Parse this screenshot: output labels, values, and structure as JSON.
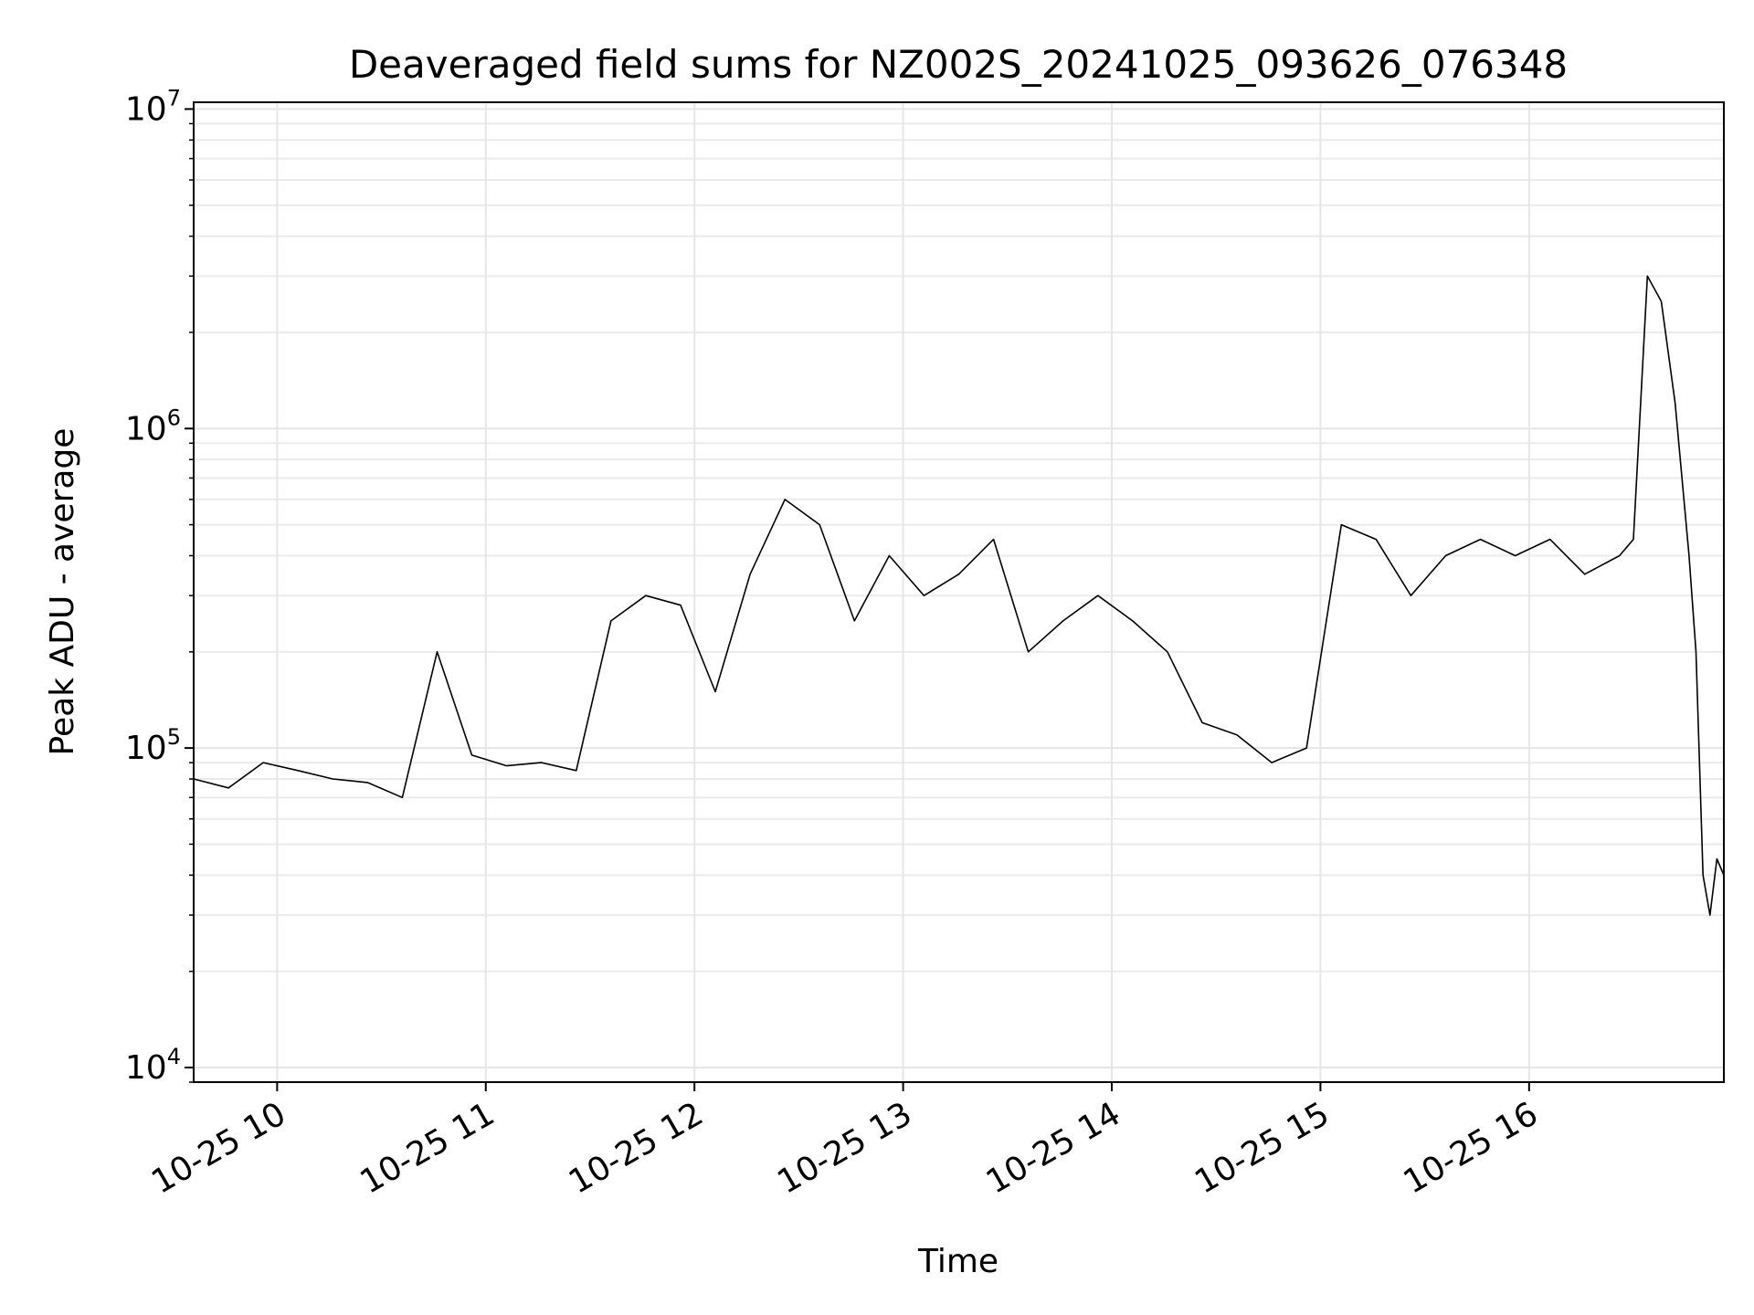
{
  "chart_data": {
    "type": "line",
    "title": "Deaveraged field sums for NZ002S_20241025_093626_076348",
    "xlabel": "Time",
    "ylabel": "Peak ADU - average",
    "yscale": "log",
    "ylim": [
      9000,
      10500000
    ],
    "xlim": [
      "2024-10-25 09:36",
      "2024-10-25 16:56"
    ],
    "x_ticks": [
      {
        "label": "10-25 10",
        "time": "2024-10-25 10:00"
      },
      {
        "label": "10-25 11",
        "time": "2024-10-25 11:00"
      },
      {
        "label": "10-25 12",
        "time": "2024-10-25 12:00"
      },
      {
        "label": "10-25 13",
        "time": "2024-10-25 13:00"
      },
      {
        "label": "10-25 14",
        "time": "2024-10-25 14:00"
      },
      {
        "label": "10-25 15",
        "time": "2024-10-25 15:00"
      },
      {
        "label": "10-25 16",
        "time": "2024-10-25 16:00"
      }
    ],
    "y_ticks": [
      {
        "base": "10",
        "exp": "4",
        "value": 10000
      },
      {
        "base": "10",
        "exp": "5",
        "value": 100000
      },
      {
        "base": "10",
        "exp": "6",
        "value": 1000000
      },
      {
        "base": "10",
        "exp": "7",
        "value": 10000000
      }
    ],
    "grid": true,
    "line_color": "#000000",
    "series": [
      {
        "x": [
          "2024-10-25 09:36",
          "2024-10-25 09:46",
          "2024-10-25 09:56",
          "2024-10-25 10:06",
          "2024-10-25 10:16",
          "2024-10-25 10:26",
          "2024-10-25 10:36",
          "2024-10-25 10:46",
          "2024-10-25 10:56",
          "2024-10-25 11:06",
          "2024-10-25 11:16",
          "2024-10-25 11:26",
          "2024-10-25 11:36",
          "2024-10-25 11:46",
          "2024-10-25 11:56",
          "2024-10-25 12:06",
          "2024-10-25 12:16",
          "2024-10-25 12:26",
          "2024-10-25 12:36",
          "2024-10-25 12:46",
          "2024-10-25 12:56",
          "2024-10-25 13:06",
          "2024-10-25 13:16",
          "2024-10-25 13:26",
          "2024-10-25 13:36",
          "2024-10-25 13:46",
          "2024-10-25 13:56",
          "2024-10-25 14:06",
          "2024-10-25 14:16",
          "2024-10-25 14:26",
          "2024-10-25 14:36",
          "2024-10-25 14:46",
          "2024-10-25 14:56",
          "2024-10-25 15:06",
          "2024-10-25 15:16",
          "2024-10-25 15:26",
          "2024-10-25 15:36",
          "2024-10-25 15:46",
          "2024-10-25 15:56",
          "2024-10-25 16:06",
          "2024-10-25 16:16",
          "2024-10-25 16:26",
          "2024-10-25 16:30",
          "2024-10-25 16:34",
          "2024-10-25 16:38",
          "2024-10-25 16:42",
          "2024-10-25 16:46",
          "2024-10-25 16:48",
          "2024-10-25 16:50",
          "2024-10-25 16:52",
          "2024-10-25 16:54",
          "2024-10-25 16:56"
        ],
        "y": [
          80000,
          75000,
          90000,
          85000,
          80000,
          78000,
          70000,
          200000,
          95000,
          88000,
          90000,
          85000,
          250000,
          300000,
          280000,
          150000,
          350000,
          600000,
          500000,
          250000,
          400000,
          300000,
          350000,
          450000,
          200000,
          250000,
          300000,
          250000,
          200000,
          120000,
          110000,
          90000,
          100000,
          500000,
          450000,
          300000,
          400000,
          450000,
          400000,
          450000,
          350000,
          400000,
          450000,
          3000000,
          2500000,
          1200000,
          400000,
          200000,
          40000,
          30000,
          45000,
          40000
        ]
      }
    ]
  }
}
